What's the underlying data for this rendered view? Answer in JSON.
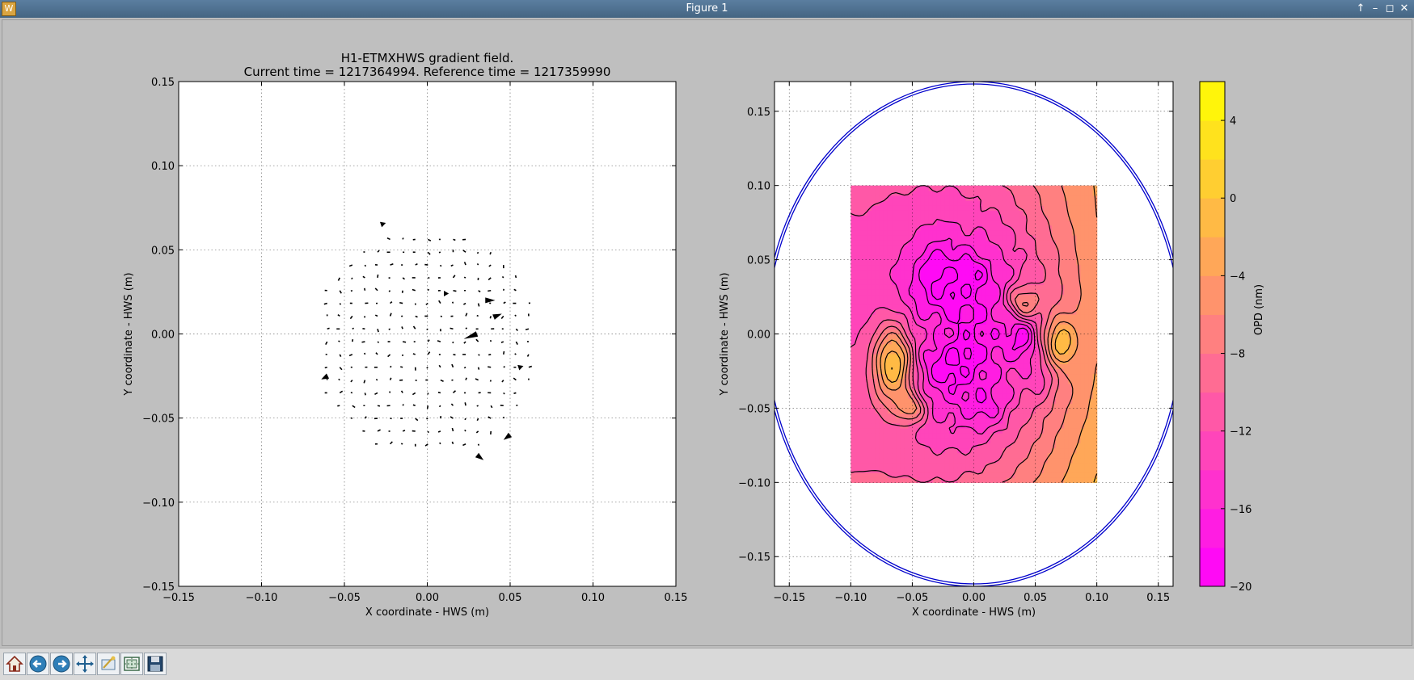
{
  "window": {
    "title": "Figure 1",
    "controls": [
      "up-arrow-icon",
      "minimize-icon",
      "maximize-icon",
      "close-icon"
    ]
  },
  "toolbar": {
    "tools": [
      "home-icon",
      "back-arrow-icon",
      "forward-arrow-icon",
      "pan-move-icon",
      "zoom-rect-icon",
      "subplots-configure-icon",
      "save-disk-icon"
    ]
  },
  "chart_data": [
    {
      "type": "quiver",
      "title": "H1-ETMXHWS gradient field.\nCurrent time = 1217364994. Reference time = 1217359990",
      "title_lines": [
        "H1-ETMXHWS gradient field.",
        "Current time = 1217364994. Reference time = 1217359990"
      ],
      "xlabel": "X coordinate - HWS (m)",
      "ylabel": "Y coordinate - HWS (m)",
      "xlim": [
        -0.15,
        0.15
      ],
      "ylim": [
        -0.15,
        0.15
      ],
      "xticks": [
        -0.15,
        -0.1,
        -0.05,
        0.0,
        0.05,
        0.1,
        0.15
      ],
      "yticks": [
        -0.15,
        -0.1,
        -0.05,
        0.0,
        0.05,
        0.1,
        0.15
      ],
      "xtick_labels": [
        "−0.15",
        "−0.10",
        "−0.05",
        "0.00",
        "0.05",
        "0.10",
        "0.15"
      ],
      "ytick_labels": [
        "−0.15",
        "−0.10",
        "−0.05",
        "0.00",
        "0.05",
        "0.10",
        "0.15"
      ],
      "grid": true,
      "arrow_color": "#000000",
      "sample_region": {
        "shape": "disk",
        "center": [
          0.0,
          -0.005
        ],
        "radius": 0.068,
        "spacing": 0.0076
      },
      "highlighted_arrows": [
        {
          "x": 0.035,
          "y": 0.02,
          "u": 0.006,
          "v": 0.0
        },
        {
          "x": 0.03,
          "y": 0.0,
          "u": -0.008,
          "v": -0.003
        },
        {
          "x": 0.04,
          "y": 0.01,
          "u": 0.005,
          "v": 0.002
        },
        {
          "x": 0.055,
          "y": -0.02,
          "u": 0.003,
          "v": 0.001
        },
        {
          "x": 0.05,
          "y": -0.06,
          "u": -0.004,
          "v": -0.003
        },
        {
          "x": -0.06,
          "y": -0.025,
          "u": -0.004,
          "v": -0.002
        },
        {
          "x": -0.028,
          "y": 0.065,
          "u": 0.003,
          "v": 0.001
        },
        {
          "x": 0.01,
          "y": 0.024,
          "u": 0.003,
          "v": 0.0
        },
        {
          "x": 0.03,
          "y": -0.072,
          "u": 0.004,
          "v": -0.003
        }
      ]
    },
    {
      "type": "contourf",
      "xlabel": "X coordinate - HWS (m)",
      "ylabel": "Y coordinate - HWS (m)",
      "xlim": [
        -0.162,
        0.162
      ],
      "ylim": [
        -0.17,
        0.17
      ],
      "xticks": [
        -0.15,
        -0.1,
        -0.05,
        0.0,
        0.05,
        0.1,
        0.15
      ],
      "yticks": [
        -0.15,
        -0.1,
        -0.05,
        0.0,
        0.05,
        0.1,
        0.15
      ],
      "xtick_labels": [
        "−0.15",
        "−0.10",
        "−0.05",
        "0.00",
        "0.05",
        "0.10",
        "0.15"
      ],
      "ytick_labels": [
        "−0.15",
        "−0.10",
        "−0.05",
        "0.00",
        "0.05",
        "0.10",
        "0.15"
      ],
      "grid": true,
      "data_extent": {
        "x": [
          -0.1,
          0.1
        ],
        "y": [
          -0.1,
          0.1
        ]
      },
      "aperture": {
        "center": [
          0.0,
          0.0
        ],
        "radius": 0.17,
        "color": "#0000cc"
      },
      "colormap": "spring",
      "levels": [
        -20,
        -18,
        -16,
        -14,
        -12,
        -10,
        -8,
        -6,
        -4,
        -2,
        0,
        2,
        4,
        6
      ],
      "colorbar": {
        "label": "OPD (nm)",
        "range": [
          -20,
          6
        ],
        "ticks": [
          -20,
          -16,
          -12,
          -8,
          -4,
          0,
          4
        ],
        "tick_labels": [
          "−20",
          "−16",
          "−12",
          "−8",
          "−4",
          "0",
          "4"
        ]
      },
      "features": [
        {
          "x": 0.0,
          "y": 0.0,
          "sx": 0.055,
          "sy": 0.07,
          "amp": -12
        },
        {
          "x": -0.03,
          "y": 0.04,
          "sx": 0.012,
          "sy": 0.015,
          "amp": -4
        },
        {
          "x": 0.04,
          "y": 0.0,
          "sx": 0.008,
          "sy": 0.012,
          "amp": -6
        },
        {
          "x": 0.055,
          "y": -0.03,
          "sx": 0.008,
          "sy": 0.01,
          "amp": -3
        },
        {
          "x": -0.02,
          "y": -0.02,
          "sx": 0.015,
          "sy": 0.012,
          "amp": -3
        },
        {
          "x": -0.065,
          "y": -0.02,
          "sx": 0.012,
          "sy": 0.02,
          "amp": 14
        },
        {
          "x": 0.04,
          "y": 0.02,
          "sx": 0.009,
          "sy": 0.009,
          "amp": 9
        },
        {
          "x": 0.07,
          "y": -0.005,
          "sx": 0.009,
          "sy": 0.012,
          "amp": 8
        },
        {
          "x": -0.05,
          "y": -0.05,
          "sx": 0.008,
          "sy": 0.007,
          "amp": 7
        },
        {
          "x": 0.0,
          "y": 0.04,
          "sx": 0.01,
          "sy": 0.01,
          "amp": -3
        },
        {
          "x": 0.01,
          "y": -0.05,
          "sx": 0.012,
          "sy": 0.01,
          "amp": -3
        },
        {
          "x": -0.03,
          "y": 0.0,
          "sx": 0.01,
          "sy": 0.01,
          "amp": 3
        }
      ],
      "background_gradient": {
        "base": -6,
        "x_coef": 40,
        "y_coef": -10
      }
    }
  ]
}
